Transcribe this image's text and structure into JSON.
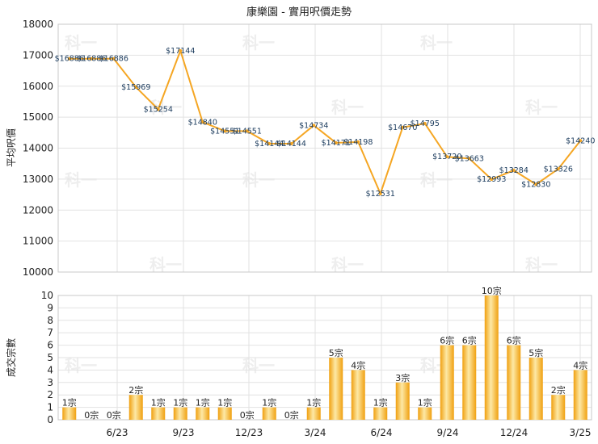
{
  "chart_data": [
    {
      "type": "line",
      "title": "康樂園 - 實用呎價走勢",
      "ylabel": "平均呎價",
      "ylim": [
        10000,
        18000
      ],
      "yticks": [
        10000,
        11000,
        12000,
        13000,
        14000,
        15000,
        16000,
        17000,
        18000
      ],
      "grid": true,
      "color": "#f5a623",
      "values": [
        16886,
        16886,
        16886,
        15969,
        15254,
        17144,
        14840,
        14551,
        14551,
        14144,
        14144,
        14734,
        14171,
        14198,
        12531,
        14670,
        14795,
        13720,
        13663,
        12993,
        13284,
        12830,
        13326,
        14240
      ],
      "labels": [
        "$16886",
        "$16886",
        "$16886",
        "$15969",
        "$15254",
        "$17144",
        "$14840",
        "$14551",
        "$14551",
        "$14144",
        "$14144",
        "$14734",
        "$14171",
        "$14198",
        "$12531",
        "$14670",
        "$14795",
        "$13720",
        "$13663",
        "$12993",
        "$13284",
        "$12830",
        "$13326",
        "$14240"
      ]
    },
    {
      "type": "bar",
      "ylabel": "成交宗數",
      "ylim": [
        0,
        10
      ],
      "yticks": [
        0,
        1,
        2,
        3,
        4,
        5,
        6,
        7,
        8,
        9,
        10
      ],
      "grid": true,
      "color": "#f5a623",
      "values": [
        1,
        0,
        0,
        2,
        1,
        1,
        1,
        1,
        0,
        1,
        0,
        1,
        5,
        4,
        1,
        3,
        1,
        6,
        6,
        10,
        6,
        5,
        2,
        4
      ],
      "labels": [
        "1宗",
        "0宗",
        "0宗",
        "2宗",
        "1宗",
        "1宗",
        "1宗",
        "1宗",
        "0宗",
        "1宗",
        "0宗",
        "1宗",
        "5宗",
        "4宗",
        "1宗",
        "3宗",
        "1宗",
        "6宗",
        "6宗",
        "10宗",
        "6宗",
        "5宗",
        "2宗",
        "4宗"
      ],
      "xticks": [
        "6/23",
        "9/23",
        "12/23",
        "3/24",
        "6/24",
        "9/24",
        "12/24",
        "3/25"
      ]
    }
  ],
  "watermark": "科一"
}
